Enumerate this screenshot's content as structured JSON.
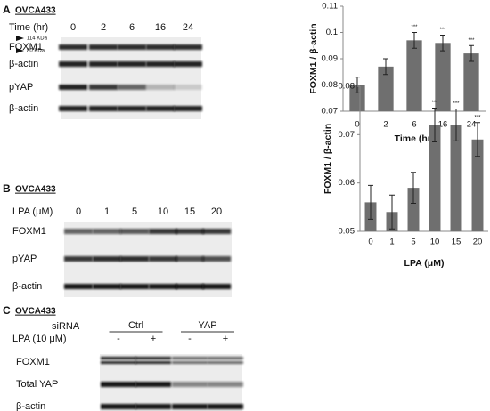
{
  "blots": [
    {
      "panel": "A",
      "cell_line": "OVCA433",
      "condition_label": "Time (hr)",
      "conditions": [
        "0",
        "2",
        "6",
        "16",
        "24"
      ],
      "markers": [
        "114 KDa",
        "80 KDa"
      ],
      "rows": [
        "FOXM1",
        "β-actin",
        "pYAP",
        "β-actin"
      ]
    },
    {
      "panel": "B",
      "cell_line": "OVCA433",
      "condition_label": "LPA (μM)",
      "conditions": [
        "0",
        "1",
        "5",
        "10",
        "15",
        "20"
      ],
      "rows": [
        "FOXM1",
        "pYAP",
        "β-actin"
      ]
    },
    {
      "panel": "C",
      "cell_line": "OVCA433",
      "group_label": "siRNA",
      "groups": [
        "Ctrl",
        "YAP"
      ],
      "condition_label": "LPA (10 μM)",
      "conditions": [
        "-",
        "+",
        "-",
        "+"
      ],
      "rows": [
        "FOXM1",
        "Total YAP",
        "β-actin"
      ]
    }
  ],
  "chart_data": [
    {
      "type": "bar",
      "y_label": "FOXM1 / β-actin",
      "x_label": "Time (hr)",
      "categories": [
        "0",
        "2",
        "6",
        "16",
        "24"
      ],
      "values": [
        0.08,
        0.087,
        0.097,
        0.096,
        0.092
      ],
      "errors": [
        0.003,
        0.003,
        0.003,
        0.003,
        0.003
      ],
      "significance": [
        null,
        null,
        "***",
        "***",
        "***"
      ],
      "color": "#6f6f6f",
      "ylim": [
        0.07,
        0.11
      ],
      "yticks": [
        0.07,
        0.08,
        0.09,
        0.1,
        0.11
      ]
    },
    {
      "type": "bar",
      "y_label": "FOXM1 / β-actin",
      "x_label": "LPA (μM)",
      "categories": [
        "0",
        "1",
        "5",
        "10",
        "15",
        "20"
      ],
      "values": [
        0.056,
        0.054,
        0.059,
        0.072,
        0.072,
        0.069
      ],
      "errors": [
        0.0035,
        0.0035,
        0.0032,
        0.0035,
        0.0033,
        0.0035
      ],
      "significance": [
        null,
        null,
        null,
        "***",
        "***",
        "***"
      ],
      "color": "#6f6f6f",
      "ylim": [
        0.05,
        0.08
      ],
      "yticks": [
        0.05,
        0.06,
        0.07,
        0.08
      ]
    }
  ]
}
